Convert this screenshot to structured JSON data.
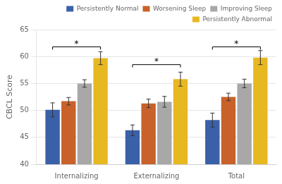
{
  "chart_data": {
    "type": "bar",
    "categories": [
      "Internalizing",
      "Externalizing",
      "Total"
    ],
    "series": [
      {
        "name": "Persistently Normal",
        "color": "#3A60A8",
        "values": [
          50.1,
          46.3,
          48.2
        ],
        "errors": [
          1.3,
          1.0,
          1.3
        ]
      },
      {
        "name": "Worsening Sleep",
        "color": "#C8622A",
        "values": [
          51.7,
          51.3,
          52.5
        ],
        "errors": [
          0.7,
          0.8,
          0.7
        ]
      },
      {
        "name": "Improving Sleep",
        "color": "#A8A8A8",
        "values": [
          55.0,
          51.6,
          55.0
        ],
        "errors": [
          0.7,
          1.0,
          0.8
        ]
      },
      {
        "name": "Persistently Abnormal",
        "color": "#E8B820",
        "values": [
          59.7,
          55.8,
          59.8
        ],
        "errors": [
          1.2,
          1.3,
          1.3
        ]
      }
    ],
    "ylabel": "CBCL Score",
    "ylim": [
      40,
      65
    ],
    "yticks": [
      40,
      45,
      50,
      55,
      60,
      65
    ],
    "grid": true,
    "legend": "upper right",
    "annotations": [
      {
        "text": "*",
        "category": "Internalizing",
        "from": "Persistently Normal",
        "to": "Persistently Abnormal",
        "y": 61.8
      },
      {
        "text": "*",
        "category": "Externalizing",
        "from": "Persistently Normal",
        "to": "Persistently Abnormal",
        "y": 58.5
      },
      {
        "text": "*",
        "category": "Total",
        "from": "Persistently Normal",
        "to": "Persistently Abnormal",
        "y": 61.8
      }
    ]
  }
}
